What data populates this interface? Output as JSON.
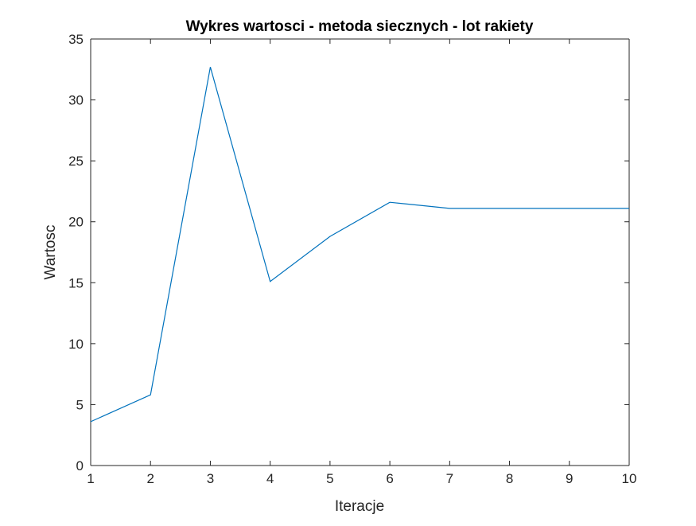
{
  "chart_data": {
    "type": "line",
    "title": "Wykres wartosci - metoda siecznych - lot rakiety",
    "xlabel": "Iteracje",
    "ylabel": "Wartosc",
    "xlim": [
      1,
      10
    ],
    "ylim": [
      0,
      35
    ],
    "xticks": [
      "1",
      "2",
      "3",
      "4",
      "5",
      "6",
      "7",
      "8",
      "9",
      "10"
    ],
    "yticks": [
      "0",
      "5",
      "10",
      "15",
      "20",
      "25",
      "30",
      "35"
    ],
    "grid": false,
    "legend": "none",
    "series": [
      {
        "color": "#0072BD",
        "x": [
          1,
          2,
          3,
          4,
          5,
          6,
          7,
          8,
          9,
          10
        ],
        "y": [
          3.6,
          5.8,
          32.7,
          15.1,
          18.8,
          21.6,
          21.1,
          21.1,
          21.1,
          21.1
        ]
      }
    ]
  }
}
